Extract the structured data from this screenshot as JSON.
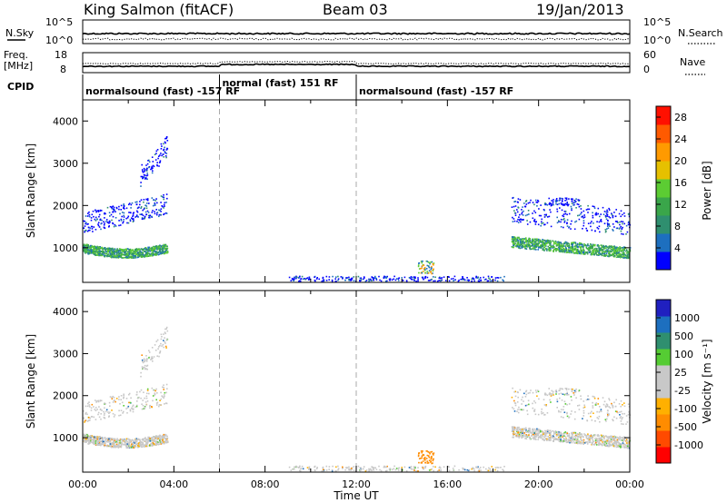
{
  "header": {
    "station": "King Salmon (fitACF)",
    "beam": "Beam 03",
    "date": "19/Jan/2013"
  },
  "top_panels": {
    "nsky_label": "N.Sky",
    "nsearch_label": "N.Search",
    "freq_label_1": "Freq.",
    "freq_label_2": "[MHz]",
    "nave_label": "Nave",
    "cpid_label": "CPID",
    "nsky_ticks": [
      "10^5",
      "10^0"
    ],
    "nsearch_ticks": [
      "10^5",
      "10^0"
    ],
    "freq_ticks": [
      "18",
      "8"
    ],
    "nave_ticks": [
      "60",
      "0"
    ]
  },
  "cpid_segments": [
    {
      "label": "normalsound (fast) -157 RF",
      "start_hr": 0,
      "end_hr": 6
    },
    {
      "label": "normal (fast) 151 RF",
      "start_hr": 6,
      "end_hr": 12
    },
    {
      "label": "normalsound (fast) -157 RF",
      "start_hr": 12,
      "end_hr": 24
    }
  ],
  "colors": {
    "power_scale": [
      "#0000ff",
      "#1d6fbf",
      "#2f8f6f",
      "#3aa64a",
      "#5ccc33",
      "#e6c000",
      "#ff9a00",
      "#ff5a00",
      "#ff1000"
    ],
    "velocity_scale": [
      "#ff0000",
      "#ff4a00",
      "#ff8c00",
      "#ffb000",
      "#c8c8c8",
      "#c8c8c8",
      "#55cc33",
      "#2f8f6f",
      "#1d6fbf",
      "#2020c0"
    ]
  },
  "chart_data": [
    {
      "type": "heatmap",
      "title": "Power",
      "ylabel": "Slant Range [km]",
      "xlabel": "Time UT",
      "x_ticks": [
        "00:00",
        "04:00",
        "08:00",
        "12:00",
        "16:00",
        "20:00",
        "00:00"
      ],
      "xlim_hours": [
        0,
        24
      ],
      "ylim_km": [
        180,
        4500
      ],
      "y_ticks": [
        "1000",
        "2000",
        "3000",
        "4000"
      ],
      "colorbar_label": "Power [dB]",
      "colorbar_ticks": [
        "4",
        "8",
        "12",
        "16",
        "20",
        "24",
        "28"
      ],
      "colorbar_range": [
        0,
        30
      ],
      "grid": false
    },
    {
      "type": "heatmap",
      "title": "Velocity",
      "ylabel": "Slant Range [km]",
      "xlabel": "Time UT",
      "x_ticks": [
        "00:00",
        "04:00",
        "08:00",
        "12:00",
        "16:00",
        "20:00",
        "00:00"
      ],
      "xlim_hours": [
        0,
        24
      ],
      "ylim_km": [
        180,
        4500
      ],
      "y_ticks": [
        "1000",
        "2000",
        "3000",
        "4000"
      ],
      "colorbar_label": "Velocity [m s⁻¹]",
      "colorbar_ticks": [
        "1000",
        "500",
        "100",
        "25",
        "-25",
        "-100",
        "-500",
        "-1000"
      ],
      "grid": false
    }
  ]
}
